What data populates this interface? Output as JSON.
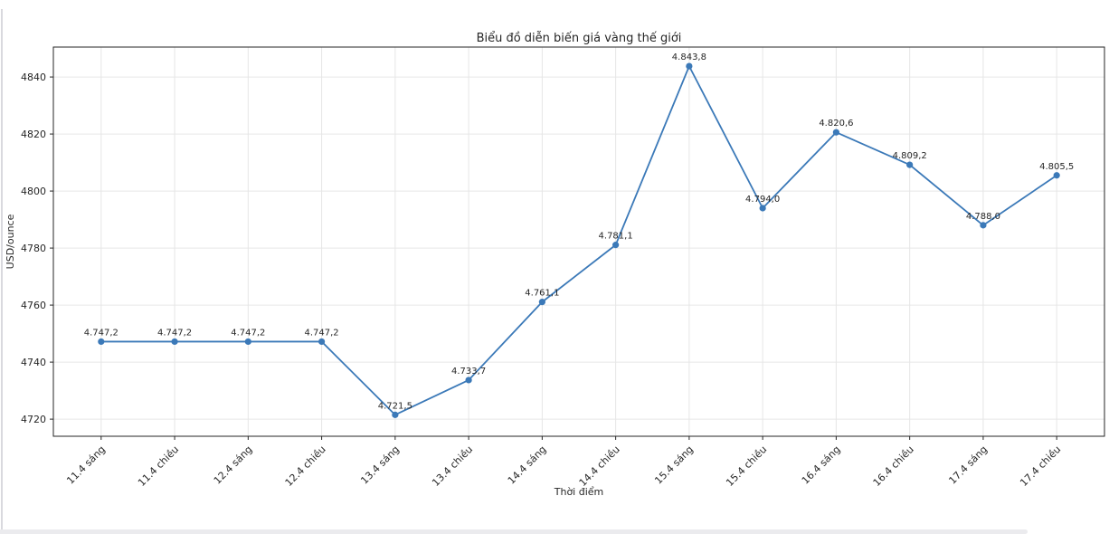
{
  "page": {
    "background": "#ffffff",
    "left_edge_color": "#d9d9de",
    "bottom_strip_color": "#ebebee"
  },
  "chart_data": {
    "type": "line",
    "title": "Biểu đồ diễn biến giá vàng thế giới",
    "xlabel": "Thời điểm",
    "ylabel": "USD/ounce",
    "categories": [
      "11.4 sáng",
      "11.4 chiều",
      "12.4 sáng",
      "12.4 chiều",
      "13.4 sáng",
      "13.4 chiều",
      "14.4 sáng",
      "14.4 chiều",
      "15.4 sáng",
      "15.4 chiều",
      "16.4 sáng",
      "16.4 chiều",
      "17.4 sáng",
      "17.4 chiều"
    ],
    "values": [
      4747.2,
      4747.2,
      4747.2,
      4747.2,
      4721.5,
      4733.7,
      4761.1,
      4781.1,
      4843.8,
      4794.0,
      4820.6,
      4809.2,
      4788.0,
      4805.5
    ],
    "point_labels": [
      "4.747,2",
      "4.747,2",
      "4.747,2",
      "4.747,2",
      "4.721,5",
      "4.733,7",
      "4.761,1",
      "4.781,1",
      "4.843,8",
      "4.794,0",
      "4.820,6",
      "4.809,2",
      "4.788,0",
      "4.805,5"
    ],
    "y_ticks": [
      4720,
      4740,
      4760,
      4780,
      4800,
      4820,
      4840
    ],
    "ylim": [
      4714.0,
      4850.5
    ],
    "grid": true,
    "legend": "none",
    "line_color": "#3b79b8",
    "marker": "circle"
  }
}
